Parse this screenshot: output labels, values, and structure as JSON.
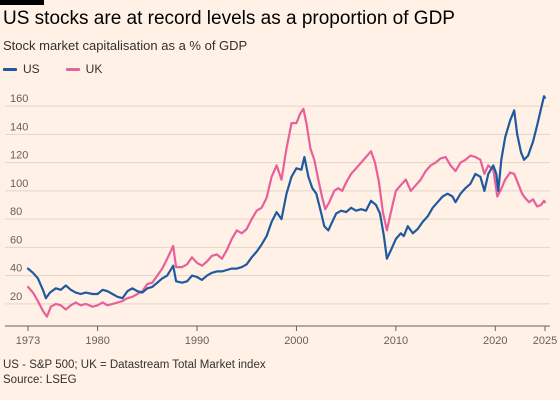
{
  "header": {
    "title": "US stocks are at record levels as a proportion of GDP",
    "subtitle": "Stock market capitalisation as a % of GDP"
  },
  "footer": {
    "note": "US - S&P 500; UK = Datastream Total Market index",
    "source": "Source: LSEG"
  },
  "chart_data": {
    "type": "line",
    "xlim": [
      1973,
      2025
    ],
    "ylim": [
      10,
      170
    ],
    "yticks": [
      20,
      40,
      60,
      80,
      100,
      120,
      140,
      160
    ],
    "xticks": [
      1973,
      1980,
      1990,
      2000,
      2010,
      2020,
      2025
    ],
    "grid": "horizontal",
    "legend_placement": "top-left",
    "series": [
      {
        "name": "US",
        "color": "#1f5aa0",
        "points": [
          [
            1973.0,
            45
          ],
          [
            1973.5,
            42
          ],
          [
            1974.0,
            38
          ],
          [
            1974.5,
            30
          ],
          [
            1974.8,
            24
          ],
          [
            1975.2,
            28
          ],
          [
            1975.8,
            31
          ],
          [
            1976.3,
            30
          ],
          [
            1976.8,
            33
          ],
          [
            1977.3,
            30
          ],
          [
            1977.8,
            28
          ],
          [
            1978.3,
            27
          ],
          [
            1978.8,
            28
          ],
          [
            1979.5,
            27
          ],
          [
            1980.0,
            27
          ],
          [
            1980.5,
            30
          ],
          [
            1981.0,
            29
          ],
          [
            1981.5,
            27
          ],
          [
            1982.0,
            25
          ],
          [
            1982.5,
            24
          ],
          [
            1983.0,
            29
          ],
          [
            1983.5,
            31
          ],
          [
            1984.0,
            29
          ],
          [
            1984.5,
            28
          ],
          [
            1985.0,
            31
          ],
          [
            1985.5,
            32
          ],
          [
            1986.0,
            35
          ],
          [
            1986.5,
            38
          ],
          [
            1987.0,
            40
          ],
          [
            1987.6,
            47
          ],
          [
            1987.9,
            36
          ],
          [
            1988.5,
            35
          ],
          [
            1989.0,
            36
          ],
          [
            1989.5,
            40
          ],
          [
            1990.0,
            39
          ],
          [
            1990.5,
            37
          ],
          [
            1991.0,
            40
          ],
          [
            1991.5,
            42
          ],
          [
            1992.0,
            43
          ],
          [
            1992.5,
            43
          ],
          [
            1993.0,
            44
          ],
          [
            1993.5,
            45
          ],
          [
            1994.0,
            45
          ],
          [
            1994.5,
            46
          ],
          [
            1995.0,
            48
          ],
          [
            1995.5,
            53
          ],
          [
            1996.0,
            57
          ],
          [
            1996.5,
            62
          ],
          [
            1997.0,
            68
          ],
          [
            1997.5,
            78
          ],
          [
            1998.0,
            85
          ],
          [
            1998.5,
            80
          ],
          [
            1999.0,
            98
          ],
          [
            1999.5,
            110
          ],
          [
            2000.0,
            116
          ],
          [
            2000.5,
            115
          ],
          [
            2000.8,
            124
          ],
          [
            2001.2,
            110
          ],
          [
            2001.6,
            102
          ],
          [
            2002.0,
            98
          ],
          [
            2002.5,
            84
          ],
          [
            2002.8,
            75
          ],
          [
            2003.2,
            72
          ],
          [
            2003.6,
            78
          ],
          [
            2004.0,
            84
          ],
          [
            2004.5,
            86
          ],
          [
            2005.0,
            85
          ],
          [
            2005.5,
            88
          ],
          [
            2006.0,
            86
          ],
          [
            2006.5,
            87
          ],
          [
            2007.0,
            86
          ],
          [
            2007.5,
            93
          ],
          [
            2008.0,
            90
          ],
          [
            2008.4,
            84
          ],
          [
            2008.8,
            68
          ],
          [
            2009.1,
            52
          ],
          [
            2009.5,
            58
          ],
          [
            2010.0,
            66
          ],
          [
            2010.5,
            70
          ],
          [
            2010.8,
            68
          ],
          [
            2011.2,
            75
          ],
          [
            2011.7,
            70
          ],
          [
            2012.2,
            73
          ],
          [
            2012.7,
            78
          ],
          [
            2013.2,
            82
          ],
          [
            2013.7,
            88
          ],
          [
            2014.2,
            92
          ],
          [
            2014.7,
            96
          ],
          [
            2015.2,
            98
          ],
          [
            2015.7,
            96
          ],
          [
            2016.0,
            92
          ],
          [
            2016.5,
            98
          ],
          [
            2017.0,
            102
          ],
          [
            2017.5,
            105
          ],
          [
            2018.0,
            112
          ],
          [
            2018.5,
            110
          ],
          [
            2018.9,
            100
          ],
          [
            2019.3,
            112
          ],
          [
            2019.8,
            118
          ],
          [
            2020.1,
            112
          ],
          [
            2020.3,
            100
          ],
          [
            2020.6,
            122
          ],
          [
            2021.0,
            138
          ],
          [
            2021.5,
            150
          ],
          [
            2021.9,
            157
          ],
          [
            2022.2,
            140
          ],
          [
            2022.6,
            127
          ],
          [
            2022.9,
            122
          ],
          [
            2023.3,
            125
          ],
          [
            2023.8,
            135
          ],
          [
            2024.2,
            146
          ],
          [
            2024.6,
            158
          ],
          [
            2024.9,
            167
          ],
          [
            2025.0,
            166
          ]
        ]
      },
      {
        "name": "UK",
        "color": "#e8609a",
        "points": [
          [
            1973.0,
            32
          ],
          [
            1973.5,
            28
          ],
          [
            1974.0,
            22
          ],
          [
            1974.5,
            15
          ],
          [
            1974.9,
            11
          ],
          [
            1975.3,
            18
          ],
          [
            1975.8,
            20
          ],
          [
            1976.3,
            19
          ],
          [
            1976.8,
            16
          ],
          [
            1977.3,
            19
          ],
          [
            1977.8,
            21
          ],
          [
            1978.3,
            19
          ],
          [
            1978.8,
            20
          ],
          [
            1979.5,
            18
          ],
          [
            1980.0,
            19
          ],
          [
            1980.5,
            21
          ],
          [
            1981.0,
            19
          ],
          [
            1981.5,
            20
          ],
          [
            1982.0,
            21
          ],
          [
            1982.5,
            22
          ],
          [
            1983.0,
            24
          ],
          [
            1983.5,
            25
          ],
          [
            1984.0,
            27
          ],
          [
            1984.5,
            29
          ],
          [
            1985.0,
            34
          ],
          [
            1985.5,
            35
          ],
          [
            1986.0,
            40
          ],
          [
            1986.5,
            45
          ],
          [
            1987.0,
            52
          ],
          [
            1987.6,
            61
          ],
          [
            1987.9,
            46
          ],
          [
            1988.5,
            46
          ],
          [
            1989.0,
            48
          ],
          [
            1989.5,
            53
          ],
          [
            1990.0,
            49
          ],
          [
            1990.5,
            47
          ],
          [
            1991.0,
            50
          ],
          [
            1991.5,
            54
          ],
          [
            1992.0,
            55
          ],
          [
            1992.5,
            52
          ],
          [
            1993.0,
            58
          ],
          [
            1993.5,
            66
          ],
          [
            1994.0,
            72
          ],
          [
            1994.5,
            70
          ],
          [
            1995.0,
            73
          ],
          [
            1995.5,
            80
          ],
          [
            1996.0,
            86
          ],
          [
            1996.5,
            88
          ],
          [
            1997.0,
            95
          ],
          [
            1997.5,
            110
          ],
          [
            1998.0,
            118
          ],
          [
            1998.5,
            108
          ],
          [
            1999.0,
            130
          ],
          [
            1999.5,
            148
          ],
          [
            2000.0,
            148
          ],
          [
            2000.4,
            155
          ],
          [
            2000.7,
            158
          ],
          [
            2001.0,
            148
          ],
          [
            2001.4,
            130
          ],
          [
            2001.8,
            122
          ],
          [
            2002.2,
            108
          ],
          [
            2002.6,
            95
          ],
          [
            2002.9,
            87
          ],
          [
            2003.3,
            92
          ],
          [
            2003.8,
            100
          ],
          [
            2004.2,
            102
          ],
          [
            2004.6,
            100
          ],
          [
            2005.0,
            106
          ],
          [
            2005.5,
            112
          ],
          [
            2006.0,
            116
          ],
          [
            2006.5,
            120
          ],
          [
            2007.0,
            124
          ],
          [
            2007.5,
            128
          ],
          [
            2007.9,
            120
          ],
          [
            2008.3,
            106
          ],
          [
            2008.7,
            85
          ],
          [
            2009.1,
            72
          ],
          [
            2009.5,
            85
          ],
          [
            2010.0,
            100
          ],
          [
            2010.5,
            104
          ],
          [
            2011.0,
            108
          ],
          [
            2011.5,
            100
          ],
          [
            2012.0,
            104
          ],
          [
            2012.5,
            108
          ],
          [
            2013.0,
            114
          ],
          [
            2013.5,
            118
          ],
          [
            2014.0,
            120
          ],
          [
            2014.5,
            123
          ],
          [
            2015.0,
            124
          ],
          [
            2015.5,
            118
          ],
          [
            2016.0,
            114
          ],
          [
            2016.5,
            120
          ],
          [
            2017.0,
            122
          ],
          [
            2017.5,
            125
          ],
          [
            2018.0,
            124
          ],
          [
            2018.5,
            122
          ],
          [
            2018.9,
            112
          ],
          [
            2019.3,
            118
          ],
          [
            2019.8,
            115
          ],
          [
            2020.2,
            96
          ],
          [
            2020.5,
            100
          ],
          [
            2021.0,
            108
          ],
          [
            2021.5,
            113
          ],
          [
            2021.9,
            112
          ],
          [
            2022.3,
            105
          ],
          [
            2022.7,
            98
          ],
          [
            2023.0,
            95
          ],
          [
            2023.4,
            92
          ],
          [
            2023.8,
            94
          ],
          [
            2024.2,
            89
          ],
          [
            2024.6,
            90
          ],
          [
            2024.9,
            93
          ],
          [
            2025.0,
            92
          ]
        ]
      }
    ]
  }
}
